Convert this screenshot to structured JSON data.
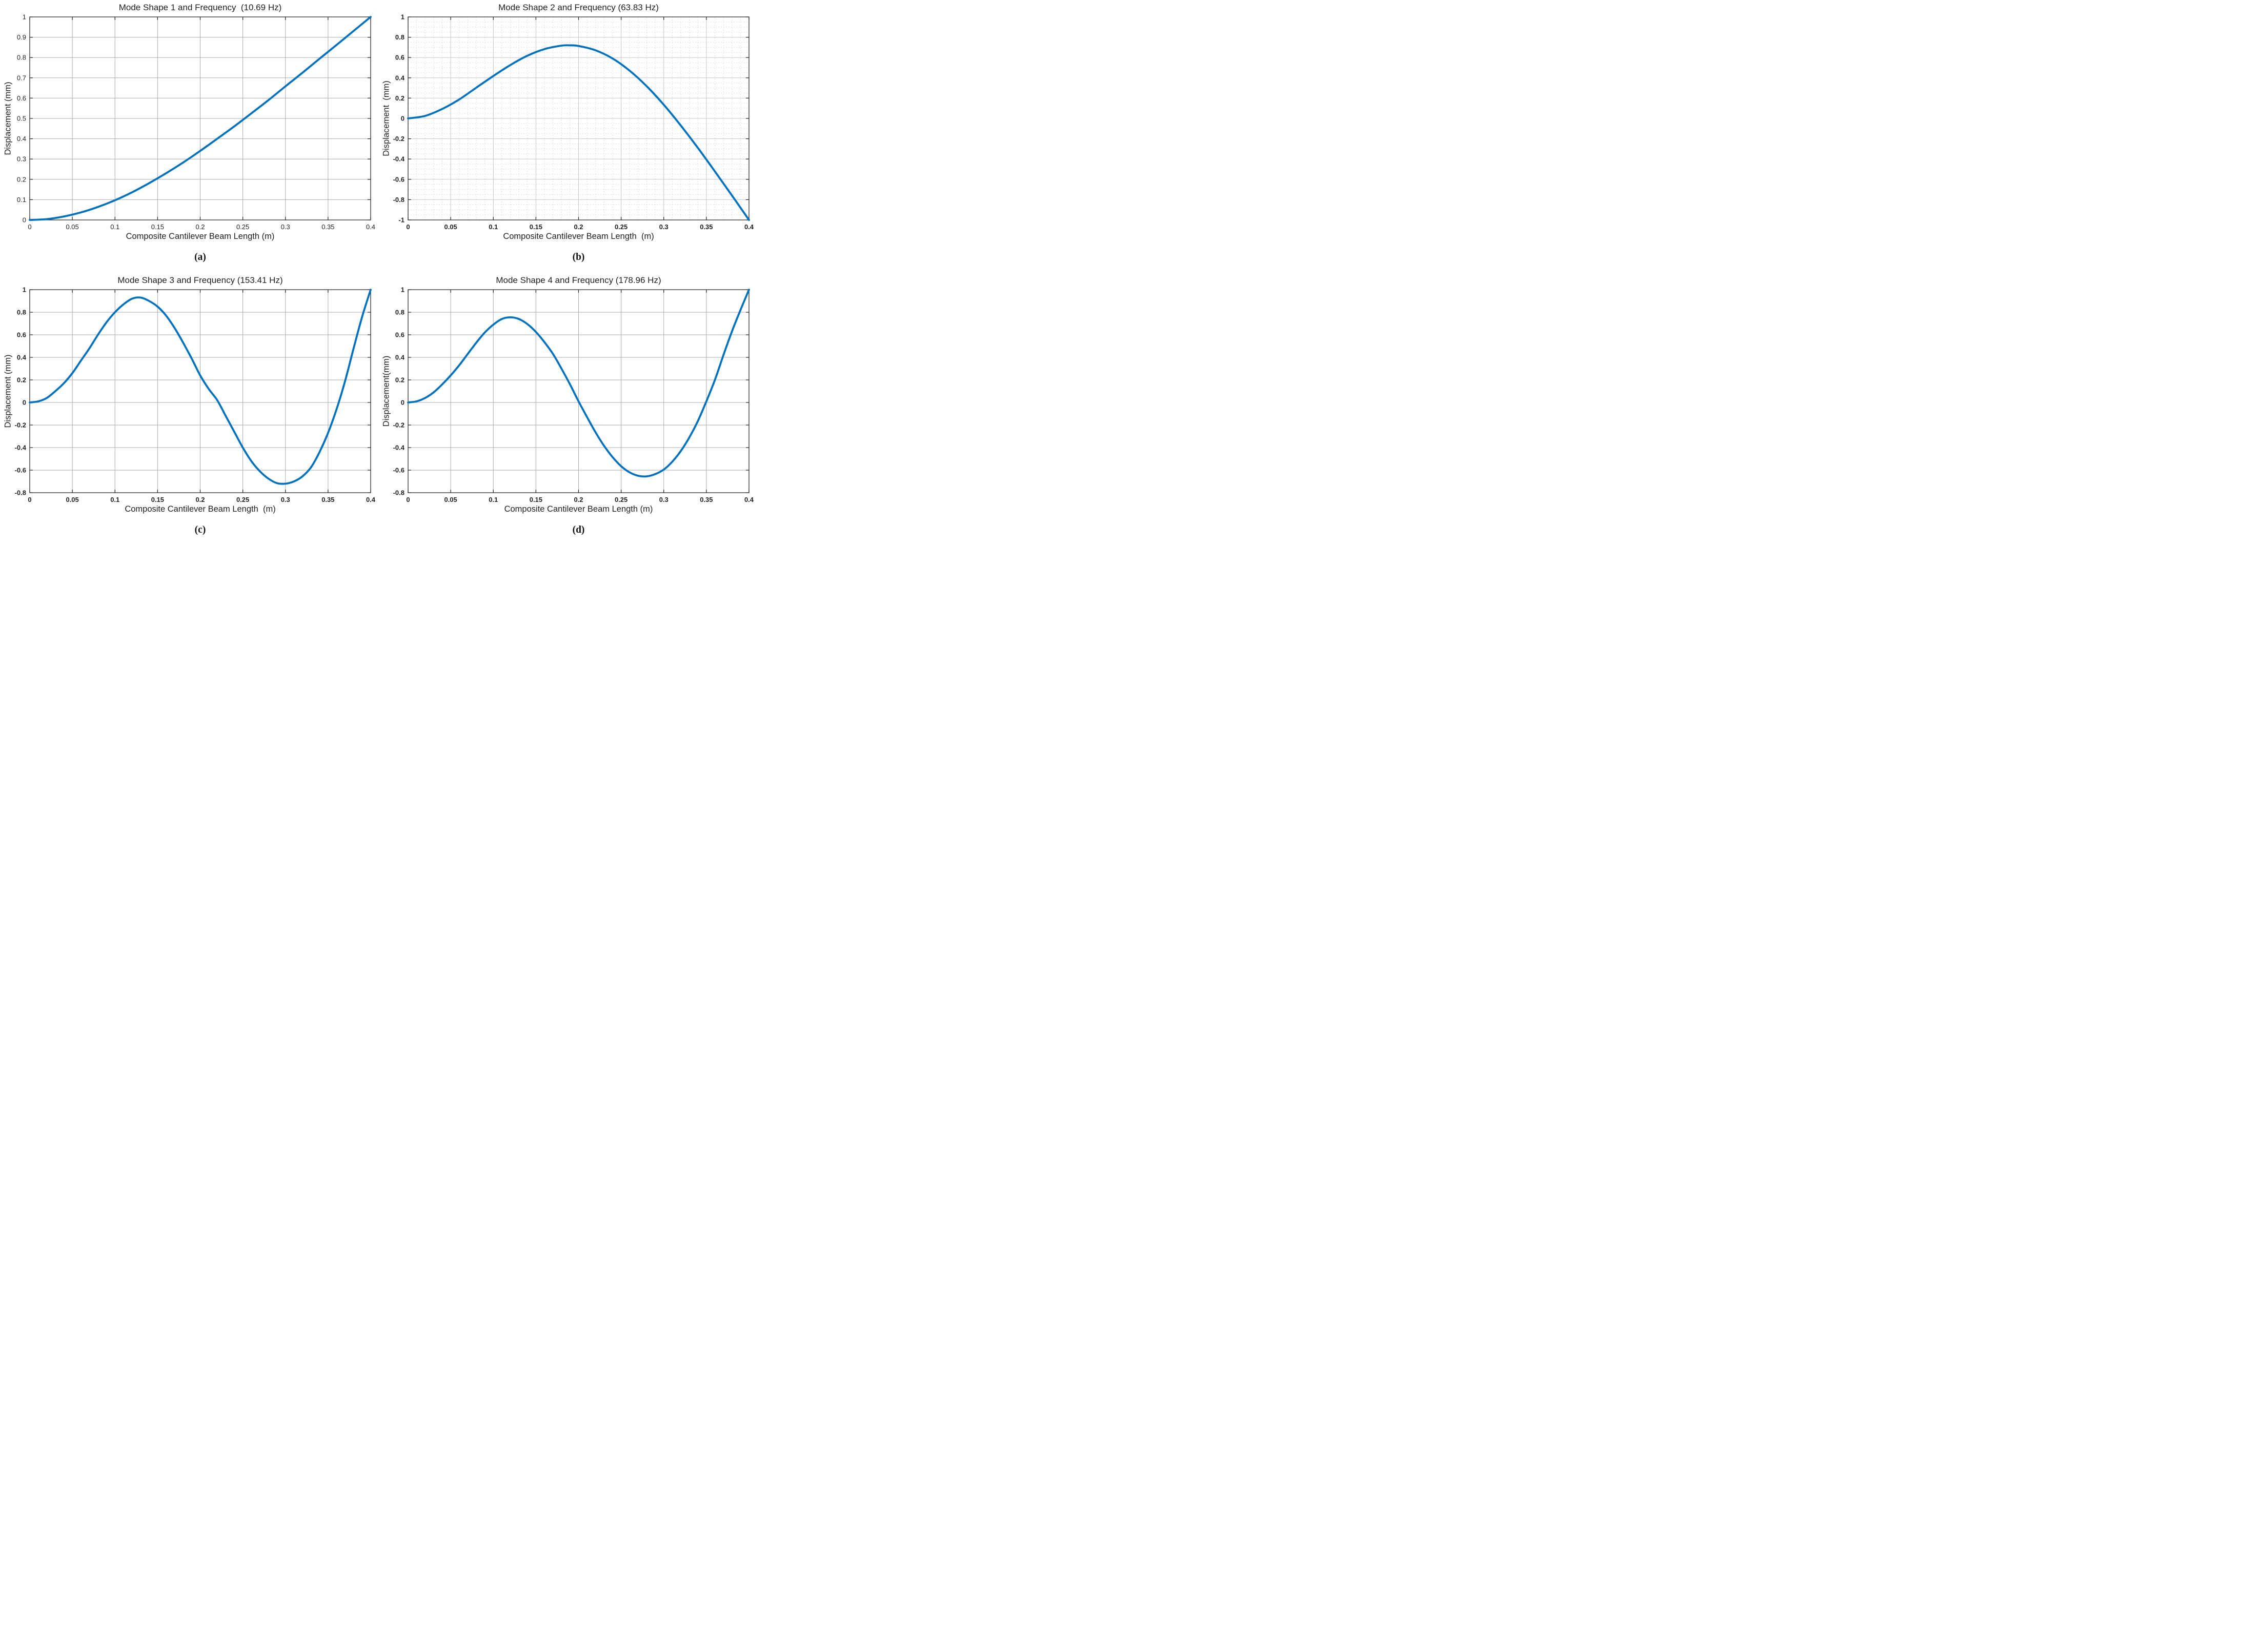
{
  "figure": {
    "background": "#ffffff"
  },
  "colors": {
    "curve": "#0072BD",
    "grid_major": "#ababab",
    "grid_major_light": "#c6c6c6",
    "grid_minor": "#dcdcdc",
    "axis": "#1f1f1f",
    "text": "#1f1f1f"
  },
  "chart_data": [
    {
      "type": "line",
      "title": "Mode Shape 1 and Frequency  (10.69 Hz)",
      "xlabel": "Composite Cantilever Beam Length (m)",
      "ylabel": "Displacement (mm)",
      "caption": "(a)",
      "xlim": [
        0,
        0.4
      ],
      "ylim": [
        0,
        1
      ],
      "xticks": [
        0,
        0.05,
        0.1,
        0.15,
        0.2,
        0.25,
        0.3,
        0.35,
        0.4
      ],
      "xtick_labels": [
        "0",
        "0.05",
        "0.1",
        "0.15",
        "0.2",
        "0.25",
        "0.3",
        "0.35",
        "0.4"
      ],
      "yticks": [
        0,
        0.1,
        0.2,
        0.3,
        0.4,
        0.5,
        0.6,
        0.7,
        0.8,
        0.9,
        1
      ],
      "ytick_labels": [
        "0",
        "0.1",
        "0.2",
        "0.3",
        "0.4",
        "0.5",
        "0.6",
        "0.7",
        "0.8",
        "0.9",
        "1"
      ],
      "grid": "major",
      "tick_bold": false,
      "legend": "none",
      "x": [
        0,
        0.02,
        0.04,
        0.06,
        0.08,
        0.1,
        0.12,
        0.14,
        0.16,
        0.18,
        0.2,
        0.22,
        0.24,
        0.26,
        0.28,
        0.3,
        0.32,
        0.34,
        0.36,
        0.38,
        0.4
      ],
      "y": [
        0,
        0.004,
        0.017,
        0.037,
        0.064,
        0.097,
        0.136,
        0.181,
        0.23,
        0.283,
        0.34,
        0.4,
        0.461,
        0.525,
        0.59,
        0.658,
        0.725,
        0.794,
        0.862,
        0.931,
        1.0
      ]
    },
    {
      "type": "line",
      "title": "Mode Shape 2 and Frequency (63.83 Hz)",
      "xlabel": "Composite Cantilever Beam Length  (m)",
      "ylabel": "Displacement  (mm)",
      "caption": "(b)",
      "xlim": [
        0,
        0.4
      ],
      "ylim": [
        -1,
        1
      ],
      "xticks": [
        0,
        0.05,
        0.1,
        0.15,
        0.2,
        0.25,
        0.3,
        0.35,
        0.4
      ],
      "xtick_labels": [
        "0",
        "0.05",
        "0.1",
        "0.15",
        "0.2",
        "0.25",
        "0.3",
        "0.35",
        "0.4"
      ],
      "yticks": [
        -1,
        -0.8,
        -0.6,
        -0.4,
        -0.2,
        0,
        0.2,
        0.4,
        0.6,
        0.8,
        1
      ],
      "ytick_labels": [
        "-1",
        "-0.8",
        "-0.6",
        "-0.4",
        "-0.2",
        "0",
        "0.2",
        "0.4",
        "0.6",
        "0.8",
        "1"
      ],
      "grid": "major+minor",
      "minor": {
        "x_step": 0.01,
        "y_step": 0.05
      },
      "tick_bold": true,
      "legend": "none",
      "x": [
        0,
        0.02,
        0.04,
        0.06,
        0.08,
        0.1,
        0.12,
        0.14,
        0.16,
        0.18,
        0.19,
        0.2,
        0.22,
        0.24,
        0.26,
        0.28,
        0.3,
        0.32,
        0.34,
        0.36,
        0.38,
        0.4
      ],
      "y": [
        0,
        0.025,
        0.093,
        0.187,
        0.303,
        0.418,
        0.526,
        0.618,
        0.683,
        0.717,
        0.72,
        0.714,
        0.671,
        0.59,
        0.47,
        0.317,
        0.135,
        -0.07,
        -0.29,
        -0.522,
        -0.759,
        -1.0
      ]
    },
    {
      "type": "line",
      "title": "Mode Shape 3 and Frequency (153.41 Hz)",
      "xlabel": "Composite Cantilever Beam Length  (m)",
      "ylabel": "Displacement (mm)",
      "caption": "(c)",
      "xlim": [
        0,
        0.4
      ],
      "ylim": [
        -0.8,
        1
      ],
      "xticks": [
        0,
        0.05,
        0.1,
        0.15,
        0.2,
        0.25,
        0.3,
        0.35,
        0.4
      ],
      "xtick_labels": [
        "0",
        "0.05",
        "0.1",
        "0.15",
        "0.2",
        "0.25",
        "0.3",
        "0.35",
        "0.4"
      ],
      "yticks": [
        -0.8,
        -0.6,
        -0.4,
        -0.2,
        0,
        0.2,
        0.4,
        0.6,
        0.8,
        1
      ],
      "ytick_labels": [
        "-0.8",
        "-0.6",
        "-0.4",
        "-0.2",
        "0",
        "0.2",
        "0.4",
        "0.6",
        "0.8",
        "1"
      ],
      "grid": "major",
      "tick_bold": true,
      "legend": "none",
      "x": [
        0,
        0.01,
        0.02,
        0.03,
        0.04,
        0.05,
        0.06,
        0.07,
        0.08,
        0.09,
        0.1,
        0.11,
        0.12,
        0.13,
        0.14,
        0.15,
        0.16,
        0.17,
        0.18,
        0.19,
        0.2,
        0.21,
        0.22,
        0.23,
        0.24,
        0.25,
        0.26,
        0.27,
        0.28,
        0.29,
        0.3,
        0.31,
        0.32,
        0.33,
        0.34,
        0.35,
        0.36,
        0.37,
        0.38,
        0.39,
        0.4
      ],
      "y": [
        0,
        0.01,
        0.04,
        0.1,
        0.17,
        0.26,
        0.37,
        0.48,
        0.6,
        0.71,
        0.8,
        0.87,
        0.92,
        0.93,
        0.9,
        0.85,
        0.77,
        0.66,
        0.53,
        0.39,
        0.24,
        0.12,
        0.02,
        -0.12,
        -0.26,
        -0.4,
        -0.52,
        -0.61,
        -0.675,
        -0.715,
        -0.72,
        -0.7,
        -0.655,
        -0.575,
        -0.44,
        -0.27,
        -0.06,
        0.19,
        0.48,
        0.76,
        1.0
      ]
    },
    {
      "type": "line",
      "title": "Mode Shape 4 and Frequency (178.96 Hz)",
      "xlabel": "Composite Cantilever Beam Length (m)",
      "ylabel": "Displacement(mm)",
      "caption": "(d)",
      "xlim": [
        0,
        0.4
      ],
      "ylim": [
        -0.8,
        1
      ],
      "xticks": [
        0,
        0.05,
        0.1,
        0.15,
        0.2,
        0.25,
        0.3,
        0.35,
        0.4
      ],
      "xtick_labels": [
        "0",
        "0.05",
        "0.1",
        "0.15",
        "0.2",
        "0.25",
        "0.3",
        "0.35",
        "0.4"
      ],
      "yticks": [
        -0.8,
        -0.6,
        -0.4,
        -0.2,
        0,
        0.2,
        0.4,
        0.6,
        0.8,
        1
      ],
      "ytick_labels": [
        "-0.8",
        "-0.6",
        "-0.4",
        "-0.2",
        "0",
        "0.2",
        "0.4",
        "0.6",
        "0.8",
        "1"
      ],
      "grid": "major",
      "tick_bold": true,
      "legend": "none",
      "x": [
        0,
        0.01,
        0.02,
        0.03,
        0.04,
        0.05,
        0.06,
        0.07,
        0.08,
        0.09,
        0.1,
        0.11,
        0.12,
        0.13,
        0.14,
        0.15,
        0.16,
        0.17,
        0.18,
        0.19,
        0.2,
        0.21,
        0.22,
        0.23,
        0.24,
        0.25,
        0.26,
        0.27,
        0.28,
        0.29,
        0.3,
        0.31,
        0.32,
        0.33,
        0.34,
        0.35,
        0.36,
        0.37,
        0.38,
        0.39,
        0.4
      ],
      "y": [
        0,
        0.01,
        0.04,
        0.09,
        0.16,
        0.24,
        0.33,
        0.43,
        0.53,
        0.62,
        0.69,
        0.74,
        0.755,
        0.74,
        0.695,
        0.625,
        0.535,
        0.43,
        0.3,
        0.16,
        0.01,
        -0.13,
        -0.265,
        -0.385,
        -0.485,
        -0.565,
        -0.62,
        -0.65,
        -0.655,
        -0.635,
        -0.595,
        -0.525,
        -0.43,
        -0.31,
        -0.165,
        0.01,
        0.2,
        0.42,
        0.63,
        0.82,
        1.0
      ]
    }
  ]
}
